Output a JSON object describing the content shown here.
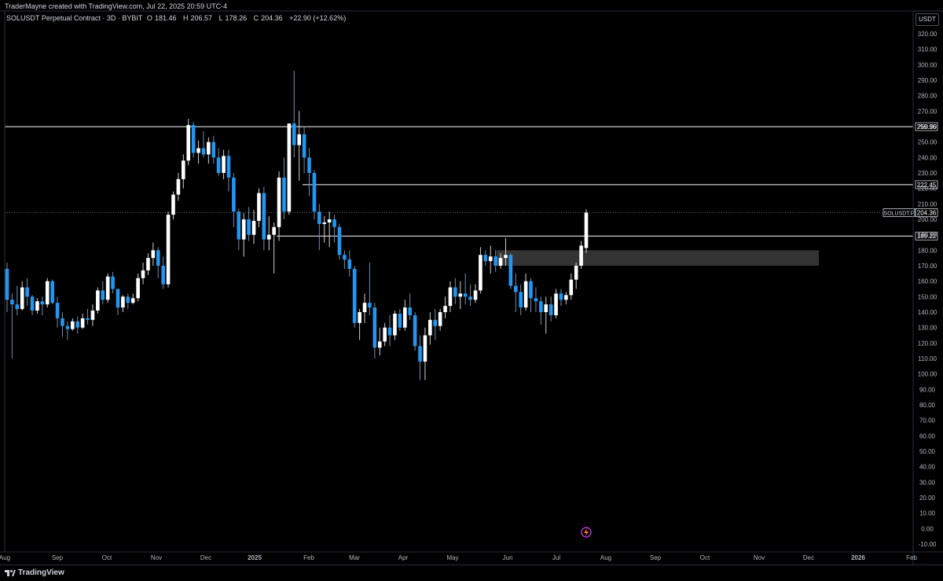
{
  "header": {
    "attribution": "TraderMayne created with TradingView.com, Jul 22, 2025 20:59 UTC-4"
  },
  "symbol": {
    "name": "SOLUSDT Perpetual Contract · 3D · BYBIT",
    "open_label": "O",
    "open": "181.46",
    "high_label": "H",
    "high": "206.57",
    "low_label": "L",
    "low": "178.26",
    "close_label": "C",
    "close": "204.36",
    "change": "+22.90 (+12.62%)"
  },
  "currency": "USDT",
  "footer": {
    "brand": "TradingView"
  },
  "colors": {
    "up": "#ffffff",
    "down": "#2196f3",
    "zone": "#3a3a3a",
    "line": "#ffffff",
    "grid": "#1a1a1a"
  },
  "chart_data": {
    "type": "candlestick",
    "ylim": [
      -10,
      320
    ],
    "yticks": [
      "320.00",
      "310.00",
      "300.00",
      "290.00",
      "280.00",
      "270.00",
      "260.00",
      "250.00",
      "240.00",
      "230.00",
      "220.00",
      "210.00",
      "200.00",
      "190.00",
      "180.00",
      "170.00",
      "160.00",
      "150.00",
      "140.00",
      "130.00",
      "120.00",
      "110.00",
      "100.00",
      "90.00",
      "80.00",
      "70.00",
      "60.00",
      "50.00",
      "40.00",
      "30.00",
      "20.00",
      "10.00",
      "0.00",
      "-10.00"
    ],
    "xticks": [
      "Aug",
      "Sep",
      "Oct",
      "Nov",
      "Dec",
      "2025",
      "Feb",
      "Mar",
      "Apr",
      "May",
      "Jun",
      "Jul",
      "Aug",
      "Sep",
      "Oct",
      "Nov",
      "Dec",
      "2026",
      "Feb"
    ],
    "bold_xticks": [
      "2025",
      "2026"
    ],
    "levels": [
      {
        "value": 259.96,
        "label": "259.96"
      },
      {
        "value": 222.45,
        "label": "222.45"
      },
      {
        "value": 189.22,
        "label": "189.22"
      }
    ],
    "current": {
      "value": 204.36,
      "label": "SOLUSDT.P",
      "price": "204.36"
    },
    "zone": {
      "from": 170,
      "to": 180
    },
    "candles": [
      [
        168,
        172,
        140,
        148
      ],
      [
        148,
        152,
        110,
        145
      ],
      [
        145,
        157,
        138,
        142
      ],
      [
        142,
        160,
        141,
        156
      ],
      [
        156,
        162,
        144,
        150
      ],
      [
        150,
        151,
        138,
        141
      ],
      [
        141,
        149,
        139,
        147
      ],
      [
        147,
        150,
        138,
        145
      ],
      [
        145,
        162,
        143,
        160
      ],
      [
        160,
        161,
        145,
        146
      ],
      [
        146,
        150,
        130,
        136
      ],
      [
        136,
        140,
        124,
        131
      ],
      [
        131,
        134,
        122,
        129
      ],
      [
        129,
        136,
        128,
        134
      ],
      [
        134,
        137,
        126,
        130
      ],
      [
        130,
        139,
        129,
        136
      ],
      [
        136,
        142,
        132,
        135
      ],
      [
        135,
        145,
        131,
        141
      ],
      [
        141,
        156,
        139,
        154
      ],
      [
        154,
        160,
        145,
        148
      ],
      [
        148,
        165,
        146,
        163
      ],
      [
        163,
        166,
        152,
        155
      ],
      [
        155,
        155,
        138,
        143
      ],
      [
        143,
        151,
        140,
        150
      ],
      [
        150,
        152,
        142,
        146
      ],
      [
        146,
        152,
        145,
        149
      ],
      [
        149,
        165,
        147,
        162
      ],
      [
        162,
        172,
        158,
        167
      ],
      [
        167,
        178,
        164,
        175
      ],
      [
        175,
        185,
        170,
        180
      ],
      [
        180,
        182,
        162,
        170
      ],
      [
        170,
        176,
        155,
        158
      ],
      [
        158,
        205,
        156,
        203
      ],
      [
        203,
        218,
        200,
        216
      ],
      [
        216,
        230,
        212,
        226
      ],
      [
        226,
        242,
        220,
        238
      ],
      [
        238,
        265,
        235,
        261
      ],
      [
        261,
        263,
        240,
        243
      ],
      [
        243,
        251,
        236,
        246
      ],
      [
        246,
        257,
        240,
        242
      ],
      [
        242,
        253,
        236,
        250
      ],
      [
        250,
        254,
        236,
        240
      ],
      [
        240,
        246,
        228,
        230
      ],
      [
        230,
        245,
        226,
        241
      ],
      [
        241,
        245,
        218,
        227
      ],
      [
        227,
        230,
        195,
        205
      ],
      [
        205,
        207,
        180,
        187
      ],
      [
        187,
        204,
        176,
        200
      ],
      [
        200,
        208,
        186,
        190
      ],
      [
        190,
        206,
        184,
        199
      ],
      [
        199,
        220,
        195,
        217
      ],
      [
        217,
        221,
        180,
        187
      ],
      [
        187,
        202,
        180,
        190
      ],
      [
        190,
        198,
        165,
        195
      ],
      [
        195,
        231,
        186,
        227
      ],
      [
        227,
        240,
        200,
        205
      ],
      [
        205,
        262,
        203,
        262
      ],
      [
        262,
        296,
        240,
        248
      ],
      [
        248,
        270,
        225,
        255
      ],
      [
        255,
        260,
        230,
        240
      ],
      [
        240,
        246,
        215,
        230
      ],
      [
        230,
        232,
        200,
        205
      ],
      [
        205,
        210,
        180,
        197
      ],
      [
        197,
        202,
        185,
        198
      ],
      [
        198,
        205,
        182,
        200
      ],
      [
        200,
        203,
        185,
        195
      ],
      [
        195,
        197,
        174,
        177
      ],
      [
        177,
        180,
        168,
        174
      ],
      [
        174,
        180,
        163,
        168
      ],
      [
        168,
        170,
        130,
        133
      ],
      [
        133,
        142,
        122,
        140
      ],
      [
        140,
        152,
        133,
        146
      ],
      [
        146,
        172,
        138,
        143
      ],
      [
        143,
        146,
        110,
        117
      ],
      [
        117,
        130,
        112,
        121
      ],
      [
        121,
        133,
        118,
        130
      ],
      [
        130,
        138,
        118,
        125
      ],
      [
        125,
        141,
        122,
        139
      ],
      [
        139,
        142,
        128,
        130
      ],
      [
        130,
        148,
        128,
        143
      ],
      [
        143,
        152,
        135,
        138
      ],
      [
        138,
        140,
        115,
        118
      ],
      [
        118,
        125,
        96,
        108
      ],
      [
        108,
        130,
        96,
        125
      ],
      [
        125,
        140,
        119,
        135
      ],
      [
        135,
        142,
        122,
        131
      ],
      [
        131,
        142,
        128,
        140
      ],
      [
        140,
        150,
        136,
        144
      ],
      [
        144,
        160,
        140,
        156
      ],
      [
        156,
        162,
        145,
        150
      ],
      [
        150,
        160,
        142,
        152
      ],
      [
        152,
        165,
        145,
        150
      ],
      [
        150,
        158,
        144,
        148
      ],
      [
        148,
        158,
        146,
        154
      ],
      [
        154,
        182,
        152,
        177
      ],
      [
        177,
        180,
        170,
        173
      ],
      [
        173,
        183,
        165,
        176
      ],
      [
        176,
        180,
        166,
        170
      ],
      [
        170,
        178,
        168,
        175
      ],
      [
        175,
        188,
        170,
        177
      ],
      [
        177,
        178,
        155,
        157
      ],
      [
        157,
        165,
        140,
        153
      ],
      [
        153,
        158,
        138,
        143
      ],
      [
        143,
        165,
        141,
        160
      ],
      [
        160,
        162,
        140,
        149
      ],
      [
        149,
        156,
        140,
        147
      ],
      [
        147,
        150,
        132,
        140
      ],
      [
        140,
        150,
        126,
        145
      ],
      [
        145,
        150,
        134,
        138
      ],
      [
        138,
        155,
        136,
        152
      ],
      [
        152,
        155,
        144,
        148
      ],
      [
        148,
        153,
        145,
        151
      ],
      [
        151,
        165,
        148,
        161
      ],
      [
        161,
        172,
        155,
        170
      ],
      [
        170,
        186,
        168,
        183
      ],
      [
        181.46,
        206.57,
        178.26,
        204.36
      ]
    ]
  }
}
